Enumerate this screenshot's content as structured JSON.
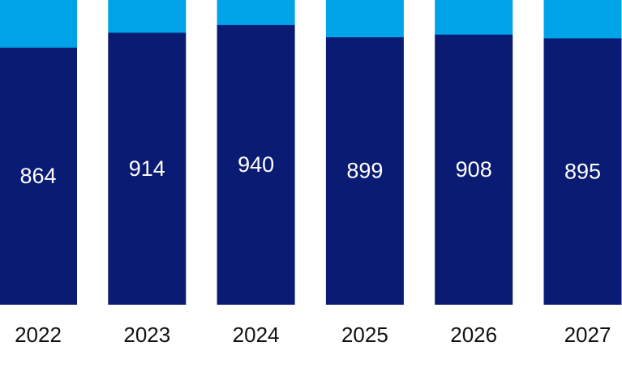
{
  "chart_data": {
    "type": "bar",
    "stacked": true,
    "categories": [
      "2022",
      "2023",
      "2024",
      "2025",
      "2026",
      "2027"
    ],
    "series": [
      {
        "values": [
          864,
          914,
          940,
          899,
          908,
          895
        ],
        "color": "#0a1b73",
        "labels": [
          "864",
          "914",
          "940",
          "899",
          "908",
          "895"
        ]
      },
      {
        "values": [
          160,
          110,
          84,
          125,
          116,
          129
        ],
        "color": "#00a3e8"
      }
    ],
    "title": "",
    "xlabel": "",
    "ylabel": "",
    "grid": false,
    "legend": "none"
  }
}
